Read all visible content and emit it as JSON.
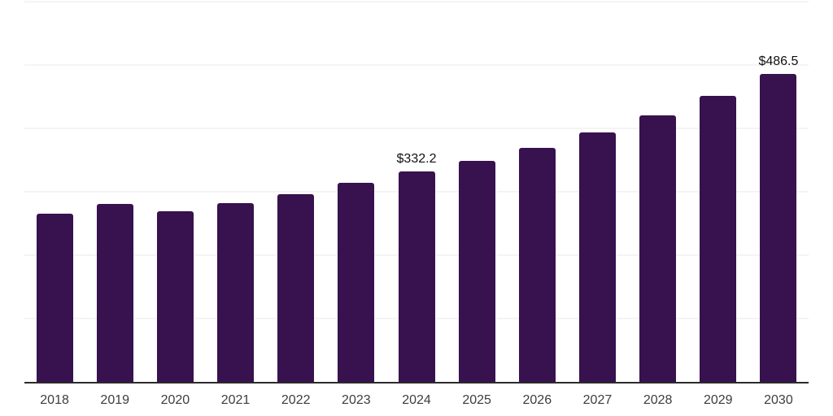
{
  "chart": {
    "background_color": "#ffffff",
    "bar_color": "#38114F",
    "grid_color": "#f4f4f4",
    "axis_color": "#2b2b2b",
    "tick_label_color": "#3d3d3d",
    "value_label_color": "#111111"
  },
  "chart_data": {
    "type": "bar",
    "title": "",
    "xlabel": "",
    "ylabel": "",
    "categories": [
      "2018",
      "2019",
      "2020",
      "2021",
      "2022",
      "2023",
      "2024",
      "2025",
      "2026",
      "2027",
      "2028",
      "2029",
      "2030"
    ],
    "values": [
      265.5,
      280.3,
      269.0,
      282.5,
      296.5,
      313.5,
      332.2,
      349.2,
      369.7,
      393.2,
      420.4,
      451.5,
      486.5
    ],
    "data_labels": [
      "",
      "",
      "",
      "",
      "",
      "",
      "$332.2",
      "",
      "",
      "",
      "",
      "",
      "$486.5"
    ],
    "labeled_points": [
      {
        "category": "2024",
        "label": "$332.2",
        "value": 332.2
      },
      {
        "category": "2030",
        "label": "$486.5",
        "value": 486.5
      }
    ],
    "ylim": [
      0,
      600
    ],
    "grid_step": 100,
    "grid": "horizontal-light",
    "y_tick_labels_visible": false,
    "legend": "none",
    "bar_color": "#38114F"
  }
}
